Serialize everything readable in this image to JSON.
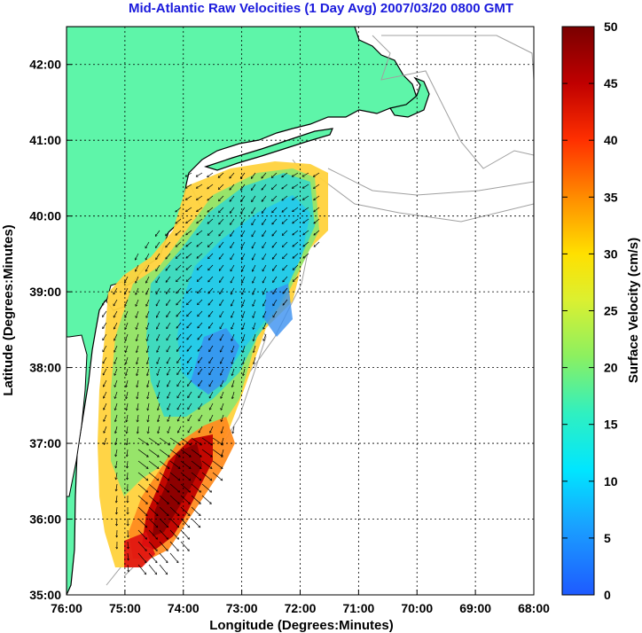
{
  "title": "Mid-Atlantic Raw Velocities (1 Day Avg) 2007/03/20 0800 GMT",
  "xlabel": "Longitude (Degrees:Minutes)",
  "ylabel": "Latitude (Degrees:Minutes)",
  "colorbar_label": "Surface Velocity (cm/s)",
  "colors": {
    "land": "#5ef5a9",
    "coast": "#000000",
    "bathymetry": "#a0a0a0",
    "grid": "#000000"
  },
  "chart_data": {
    "type": "heatmap",
    "x_ticks": [
      "76:00",
      "75:00",
      "74:00",
      "73:00",
      "72:00",
      "71:00",
      "70:00",
      "69:00",
      "68:00"
    ],
    "y_ticks": [
      "42:00",
      "41:00",
      "40:00",
      "39:00",
      "38:00",
      "37:00",
      "36:00",
      "35:00"
    ],
    "xlim": [
      -76,
      -68
    ],
    "ylim": [
      35,
      42.5
    ],
    "colorbar_ticks": [
      "0",
      "5",
      "10",
      "15",
      "20",
      "25",
      "30",
      "35",
      "40",
      "45",
      "50"
    ],
    "colorbar_range": [
      0,
      50
    ],
    "grid": true,
    "colormap": "jet"
  }
}
